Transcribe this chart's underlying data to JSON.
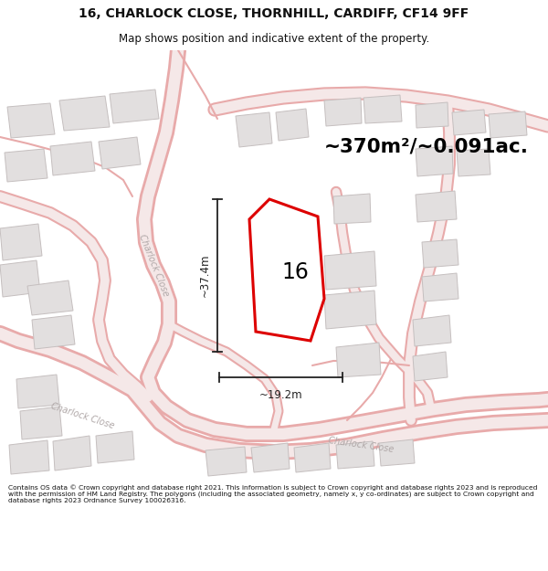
{
  "title_line1": "16, CHARLOCK CLOSE, THORNHILL, CARDIFF, CF14 9FF",
  "title_line2": "Map shows position and indicative extent of the property.",
  "area_label": "~370m²/~0.091ac.",
  "property_number": "16",
  "dim_height": "~37.4m",
  "dim_width": "~19.2m",
  "footer_text": "Contains OS data © Crown copyright and database right 2021. This information is subject to Crown copyright and database rights 2023 and is reproduced with the permission of HM Land Registry. The polygons (including the associated geometry, namely x, y co-ordinates) are subject to Crown copyright and database rights 2023 Ordnance Survey 100026316.",
  "map_bg": "#f8f7f7",
  "road_outline_color": "#e8aaaa",
  "road_fill_color": "#f5e8e8",
  "property_color": "#dd0000",
  "building_fill": "#e2dfdf",
  "building_edge": "#c5bfbf",
  "dim_color": "#222222",
  "road_label_color": "#b0a8a8",
  "title_color": "#111111",
  "footer_color": "#111111"
}
